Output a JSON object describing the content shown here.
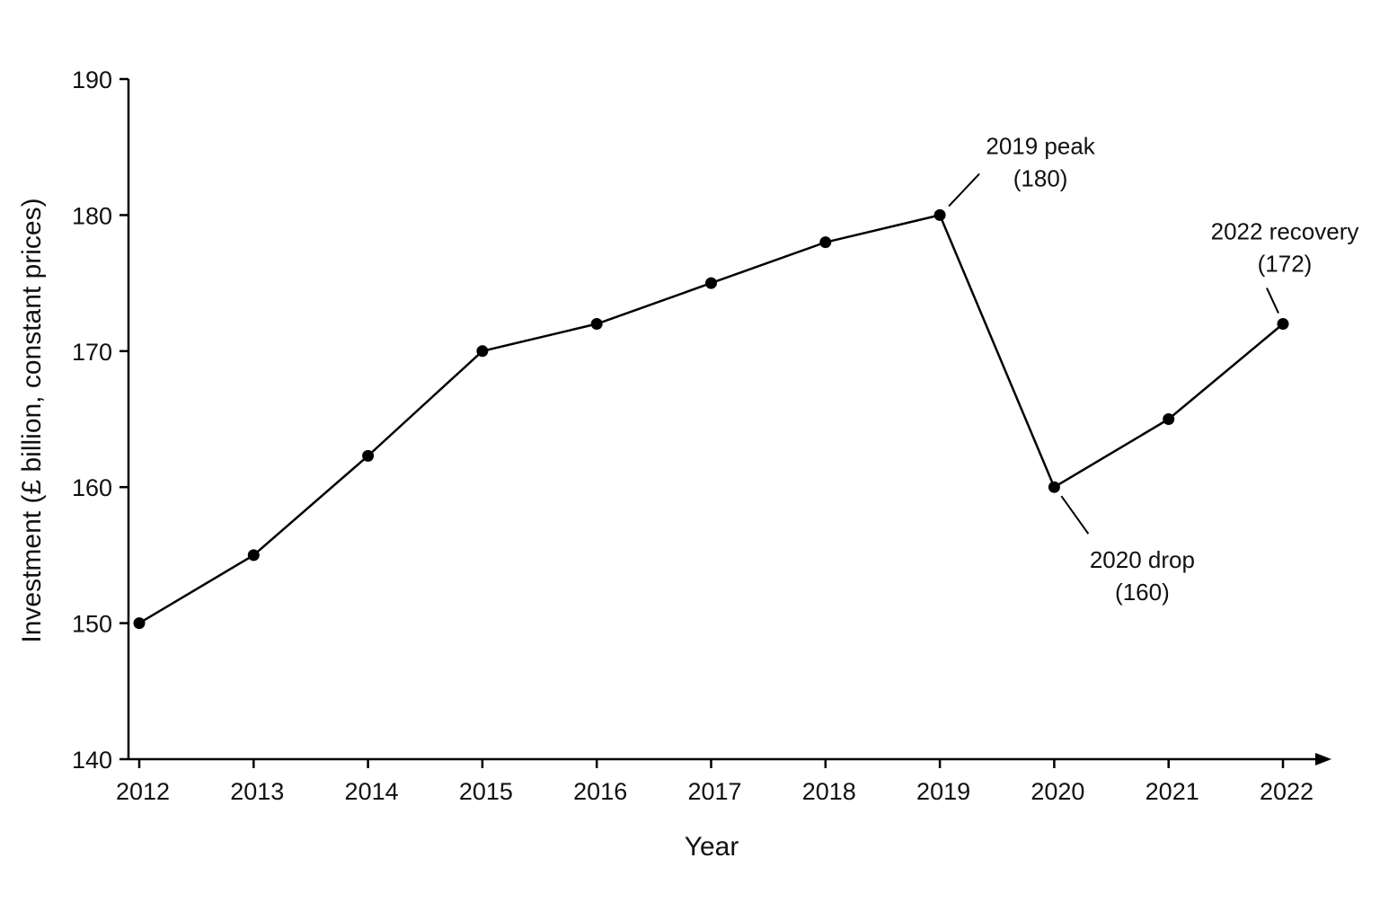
{
  "chart_data": {
    "type": "line",
    "title": "",
    "xlabel": "Year",
    "ylabel": "Investment (£ billion, constant prices)",
    "x": [
      2012,
      2013,
      2014,
      2015,
      2016,
      2017,
      2018,
      2019,
      2020,
      2021,
      2022
    ],
    "x_tick_labels": [
      "2012",
      "2013",
      "2014",
      "2015",
      "2016",
      "2017",
      "2018",
      "2019",
      "2020",
      "2021",
      "2022"
    ],
    "y_ticks": [
      140,
      150,
      160,
      170,
      180,
      190
    ],
    "y_tick_labels": [
      "140",
      "150",
      "160",
      "170",
      "180",
      "190"
    ],
    "ylim": [
      140,
      190
    ],
    "grid": false,
    "series": [
      {
        "values": [
          150,
          155,
          162.3,
          170,
          172,
          175,
          178,
          180,
          160,
          165,
          172
        ]
      }
    ],
    "annotations": [
      {
        "x": 2019,
        "y": 180,
        "line1": "2019 peak",
        "line2": "(180)"
      },
      {
        "x": 2020,
        "y": 160,
        "line1": "2020 drop",
        "line2": "(160)"
      },
      {
        "x": 2022,
        "y": 172,
        "line1": "2022 recovery",
        "line2": "(172)"
      }
    ],
    "colors": {
      "line": "#000000",
      "marker": "#000000",
      "axis": "#000000"
    }
  }
}
